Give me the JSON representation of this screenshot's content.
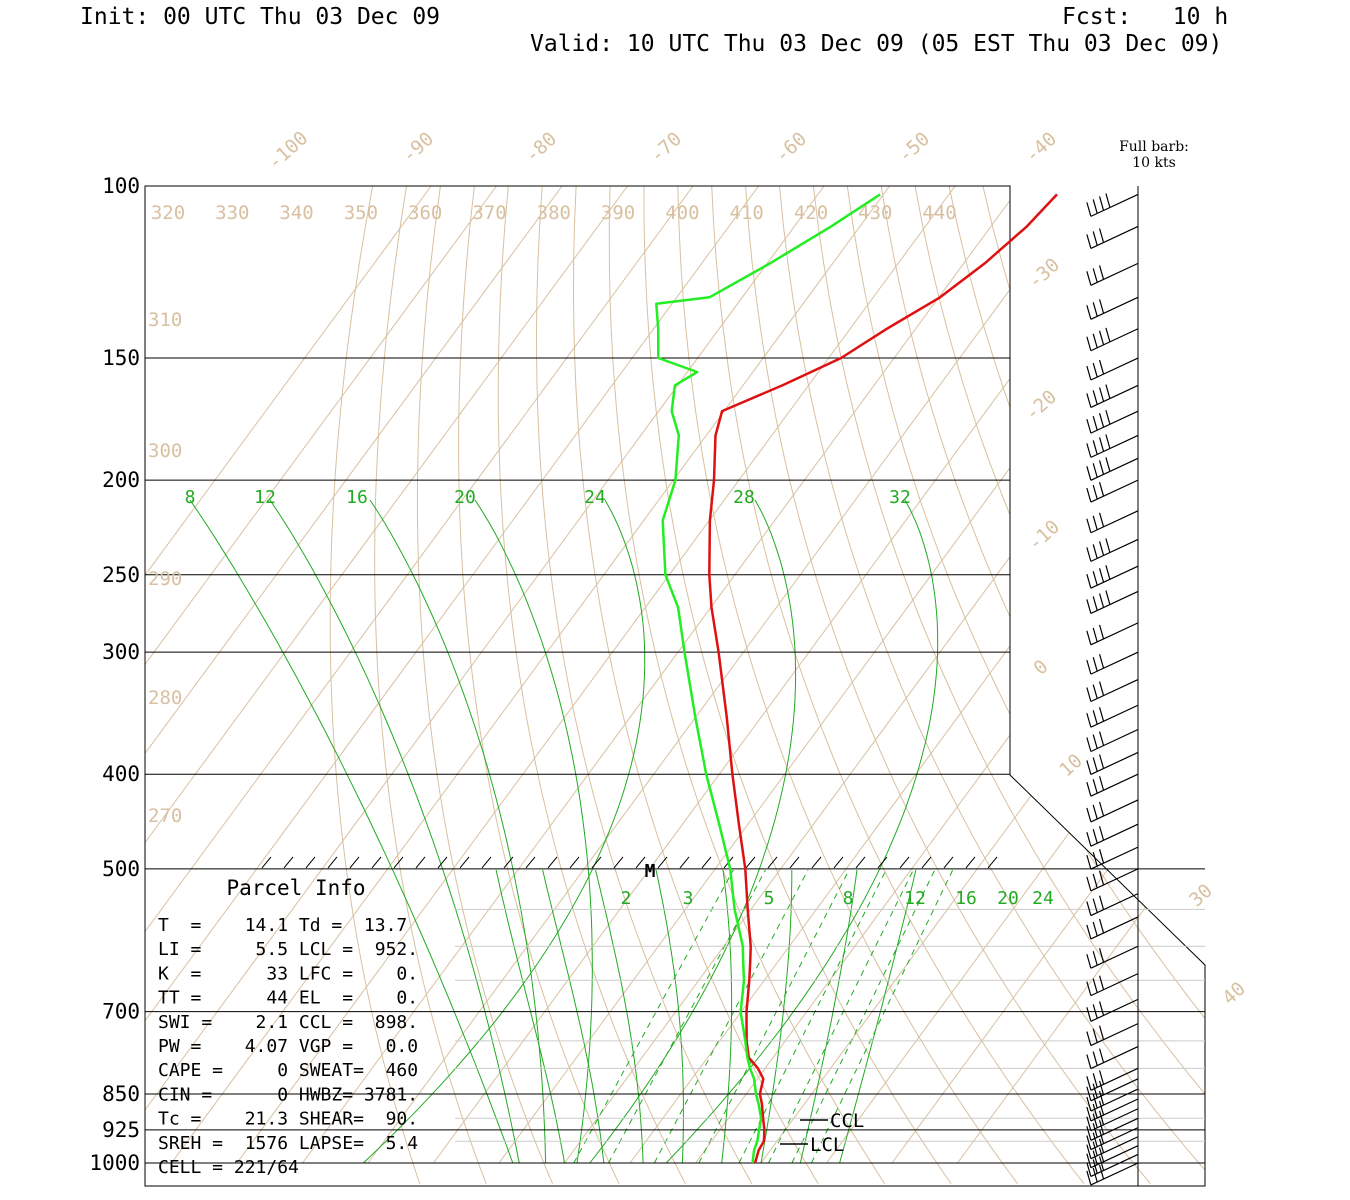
{
  "header": {
    "init": "Init: 00 UTC Thu 03 Dec 09",
    "fcst": "Fcst:   10 h",
    "valid": "Valid: 10 UTC Thu 03 Dec 09 (05 EST Thu 03 Dec 09)"
  },
  "barb_legend": {
    "line1": "Full barb:",
    "line2": "10 kts"
  },
  "colors": {
    "temperature": "#dd1111",
    "dewpoint": "#22ee22",
    "isotherm_label": "#d8c0a0",
    "mixing_ratio": "#22aa22",
    "grid": "#000000"
  },
  "chart_data": {
    "type": "line",
    "subtype": "skew-T log-P sounding",
    "y_axis": {
      "scale": "log",
      "unit": "hPa",
      "ylim": [
        1000,
        100
      ],
      "ticks": [
        100,
        150,
        200,
        250,
        300,
        400,
        500,
        700,
        850,
        925,
        1000
      ]
    },
    "isotherm_labels": [
      "-100",
      "-90",
      "-80",
      "-70",
      "-60",
      "-50",
      "-40",
      "-30",
      "-20",
      "-10",
      "0",
      "10",
      "30",
      "40"
    ],
    "theta_labels_top": [
      "320",
      "330",
      "340",
      "350",
      "360",
      "370",
      "380",
      "390",
      "400",
      "410",
      "420",
      "430",
      "440"
    ],
    "theta_labels_left": [
      "310",
      "300",
      "290",
      "280",
      "270"
    ],
    "mixing_ratio_labels_upper": [
      "8",
      "12",
      "16",
      "20",
      "24",
      "28",
      "32"
    ],
    "mixing_ratio_labels_lower": [
      "2",
      "3",
      "5",
      "8",
      "12",
      "16",
      "20",
      "24"
    ],
    "series": [
      {
        "name": "T",
        "points": [
          [
            1000,
            19.1
          ],
          [
            970,
            18.2
          ],
          [
            950,
            18.0
          ],
          [
            925,
            16.8
          ],
          [
            900,
            15.3
          ],
          [
            870,
            13.5
          ],
          [
            850,
            12.1
          ],
          [
            820,
            10.9
          ],
          [
            800,
            8.9
          ],
          [
            780,
            6.3
          ],
          [
            750,
            4.1
          ],
          [
            700,
            0.8
          ],
          [
            650,
            -2.3
          ],
          [
            620,
            -4.4
          ],
          [
            600,
            -5.9
          ],
          [
            550,
            -10.5
          ],
          [
            500,
            -15.4
          ],
          [
            450,
            -21.4
          ],
          [
            400,
            -28.0
          ],
          [
            350,
            -35.2
          ],
          [
            300,
            -43.8
          ],
          [
            270,
            -49.9
          ],
          [
            250,
            -53.9
          ],
          [
            220,
            -59.9
          ],
          [
            200,
            -63.8
          ],
          [
            180,
            -68.6
          ],
          [
            170,
            -70.3
          ],
          [
            160,
            -64.0
          ],
          [
            150,
            -58.1
          ],
          [
            140,
            -54.4
          ],
          [
            130,
            -49.8
          ],
          [
            120,
            -46.8
          ],
          [
            110,
            -44.5
          ],
          [
            102,
            -43.5
          ]
        ]
      },
      {
        "name": "Td",
        "points": [
          [
            1000,
            18.7
          ],
          [
            970,
            17.5
          ],
          [
            950,
            17.0
          ],
          [
            925,
            16.0
          ],
          [
            900,
            15.0
          ],
          [
            870,
            13.0
          ],
          [
            850,
            11.5
          ],
          [
            820,
            9.5
          ],
          [
            800,
            7.7
          ],
          [
            780,
            6.1
          ],
          [
            750,
            3.9
          ],
          [
            700,
            -0.1
          ],
          [
            650,
            -3.1
          ],
          [
            620,
            -5.5
          ],
          [
            600,
            -7.1
          ],
          [
            550,
            -12.5
          ],
          [
            500,
            -17.7
          ],
          [
            450,
            -24.4
          ],
          [
            400,
            -32.0
          ],
          [
            350,
            -40.0
          ],
          [
            300,
            -49.0
          ],
          [
            270,
            -55.0
          ],
          [
            250,
            -60.6
          ],
          [
            220,
            -67.1
          ],
          [
            200,
            -69.7
          ],
          [
            180,
            -74.2
          ],
          [
            170,
            -78.0
          ],
          [
            160,
            -80.4
          ],
          [
            155,
            -78.5
          ],
          [
            150,
            -86.0
          ],
          [
            140,
            -89.3
          ],
          [
            132,
            -92.4
          ],
          [
            130,
            -85.0
          ],
          [
            120,
            -79.6
          ],
          [
            110,
            -74.4
          ],
          [
            102,
            -70.5
          ]
        ]
      }
    ],
    "wind_barbs": [
      [
        102,
        "W",
        40
      ],
      [
        110,
        "W",
        30
      ],
      [
        120,
        "W",
        30
      ],
      [
        130,
        "W",
        30
      ],
      [
        140,
        "W",
        40
      ],
      [
        150,
        "W",
        30
      ],
      [
        160,
        "W",
        40
      ],
      [
        170,
        "W",
        40
      ],
      [
        180,
        "W",
        40
      ],
      [
        190,
        "W",
        40
      ],
      [
        200,
        "W",
        30
      ],
      [
        215,
        "W",
        30
      ],
      [
        230,
        "W",
        40
      ],
      [
        245,
        "W",
        40
      ],
      [
        260,
        "W",
        40
      ],
      [
        280,
        "W",
        30
      ],
      [
        300,
        "W",
        30
      ],
      [
        320,
        "W",
        30
      ],
      [
        340,
        "W",
        30
      ],
      [
        360,
        "W",
        30
      ],
      [
        380,
        "W",
        30
      ],
      [
        400,
        "W",
        30
      ],
      [
        425,
        "W",
        30
      ],
      [
        450,
        "W",
        30
      ],
      [
        475,
        "W",
        30
      ],
      [
        500,
        "W",
        30
      ],
      [
        530,
        "W",
        30
      ],
      [
        560,
        "W",
        30
      ],
      [
        600,
        "W",
        30
      ],
      [
        640,
        "W",
        30
      ],
      [
        680,
        "W",
        30
      ],
      [
        720,
        "W",
        30
      ],
      [
        760,
        "W",
        30
      ],
      [
        800,
        "W",
        30
      ],
      [
        820,
        "W",
        30
      ],
      [
        840,
        "W",
        30
      ],
      [
        860,
        "W",
        30
      ],
      [
        880,
        "W",
        30
      ],
      [
        900,
        "W",
        30
      ],
      [
        920,
        "W",
        30
      ],
      [
        940,
        "W",
        30
      ],
      [
        960,
        "W",
        30
      ],
      [
        980,
        "W",
        30
      ],
      [
        1000,
        "W",
        30
      ]
    ],
    "markers": {
      "M": 500,
      "CCL": "CCL",
      "LCL": "LCL"
    }
  },
  "parcel_info": {
    "title": "Parcel Info",
    "rows": [
      "T  =    14.1 Td =  13.7",
      "LI =     5.5 LCL =  952.",
      "K  =      33 LFC =    0.",
      "TT =      44 EL  =    0.",
      "SWI =    2.1 CCL =  898.",
      "PW =    4.07 VGP =   0.0",
      "CAPE =     0 SWEAT=  460",
      "CIN =      0 HWBZ= 3781.",
      "Tc =    21.3 SHEAR=  90.",
      "SREH =  1576 LAPSE=  5.4",
      "CELL = 221/64"
    ]
  }
}
